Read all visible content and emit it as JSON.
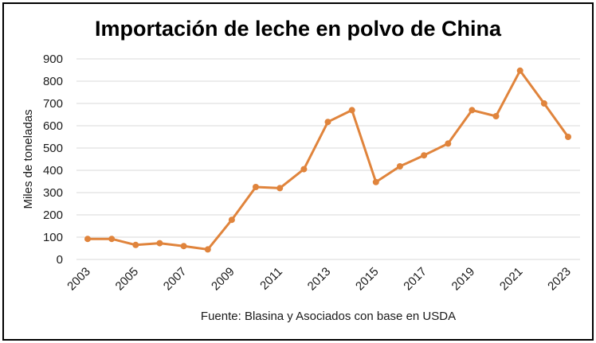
{
  "chart_data": {
    "type": "line",
    "title": "Importación de leche en polvo de China",
    "ylabel": "Miles de toneladas",
    "xlabel": "",
    "source": "Fuente: Blasina y Asociados con base en USDA",
    "x": [
      2003,
      2004,
      2005,
      2006,
      2007,
      2008,
      2009,
      2010,
      2011,
      2012,
      2013,
      2014,
      2015,
      2016,
      2017,
      2018,
      2019,
      2020,
      2021,
      2022,
      2023
    ],
    "x_tick_labels": [
      "2003",
      "2005",
      "2007",
      "2009",
      "2011",
      "2013",
      "2015",
      "2017",
      "2019",
      "2021",
      "2023"
    ],
    "series": [
      {
        "values": [
          92,
          92,
          65,
          73,
          60,
          45,
          178,
          325,
          320,
          405,
          617,
          670,
          347,
          418,
          467,
          520,
          670,
          643,
          847,
          700,
          550
        ]
      }
    ],
    "ylim": [
      0,
      900
    ],
    "y_ticks": [
      0,
      100,
      200,
      300,
      400,
      500,
      600,
      700,
      800,
      900
    ],
    "grid": true,
    "legend": "none",
    "colors": {
      "line": "#E0843C",
      "grid": "#d9d9d9",
      "text": "#1a1a1a"
    }
  }
}
